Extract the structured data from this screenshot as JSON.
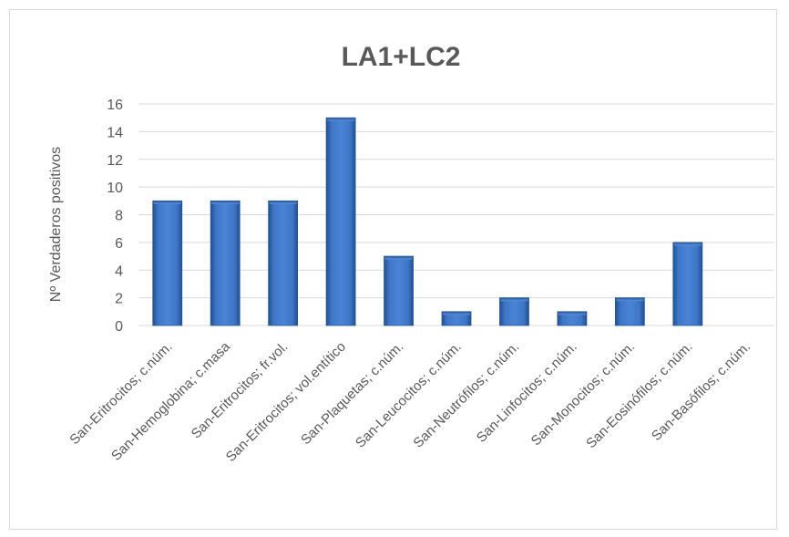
{
  "chart_data": {
    "type": "bar",
    "title": "LA1+LC2",
    "xlabel": "",
    "ylabel": "Nº Verdaderos positivos",
    "ylim": [
      0,
      16
    ],
    "yticks": [
      0,
      2,
      4,
      6,
      8,
      10,
      12,
      14,
      16
    ],
    "grid": true,
    "bar_color": "#3f76c6",
    "categories": [
      "San-Eritrocitos; c.núm.",
      "San-Hemoglobina; c.masa",
      "San-Eritrocitos; fr.vol.",
      "San-Eritrocitos; vol.entítico",
      "San-Plaquetas; c.núm.",
      "San-Leucocitos; c.núm.",
      "San-Neutrófilos; c.núm.",
      "San-Linfocitos; c.núm.",
      "San-Monocitos; c.núm.",
      "San-Eosinófilos; c.núm.",
      "San-Basófilos; c.núm."
    ],
    "values": [
      9,
      9,
      9,
      15,
      5,
      1,
      2,
      1,
      2,
      6,
      0
    ]
  }
}
